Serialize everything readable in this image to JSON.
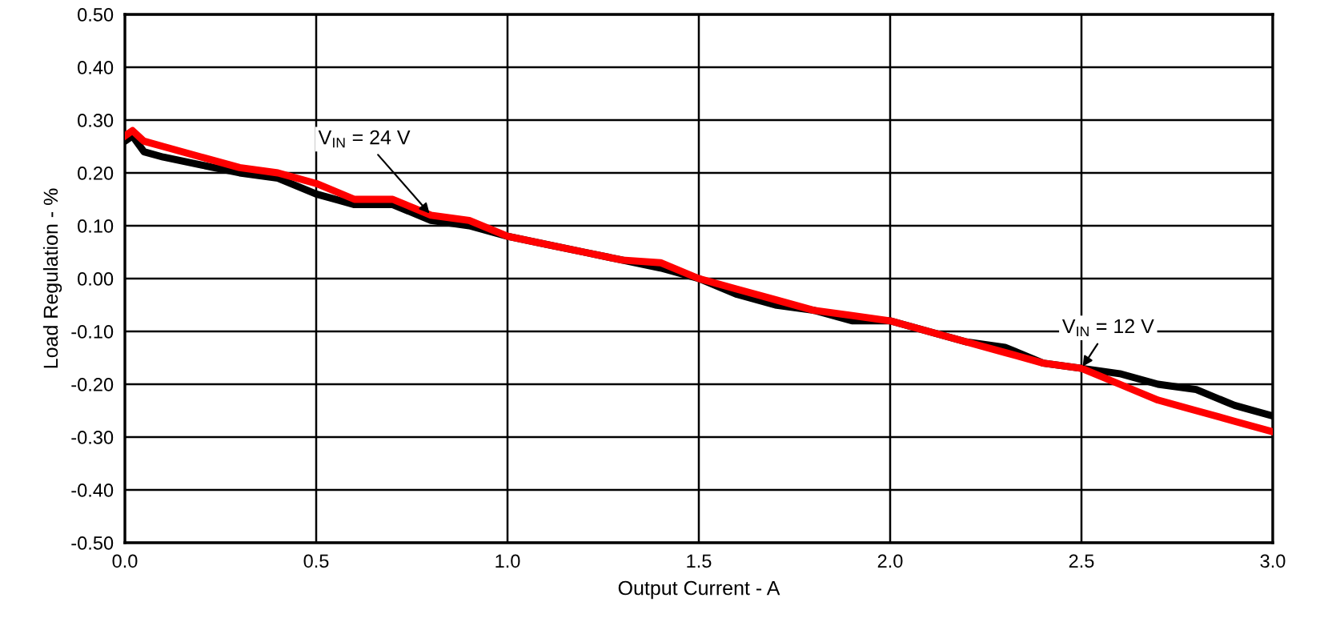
{
  "chart_data": {
    "type": "line",
    "xlabel": "Output Current - A",
    "ylabel": "Load Regulation - %",
    "xlim": [
      0,
      3
    ],
    "ylim": [
      -0.5,
      0.5
    ],
    "xticks": [
      {
        "value": 0,
        "label": "0.0"
      },
      {
        "value": 0.5,
        "label": "0.5"
      },
      {
        "value": 1,
        "label": "1.0"
      },
      {
        "value": 1.5,
        "label": "1.5"
      },
      {
        "value": 2,
        "label": "2.0"
      },
      {
        "value": 2.5,
        "label": "2.5"
      },
      {
        "value": 3,
        "label": "3.0"
      }
    ],
    "yticks": [
      {
        "value": -0.5,
        "label": "-0.50"
      },
      {
        "value": -0.4,
        "label": "-0.40"
      },
      {
        "value": -0.3,
        "label": "-0.30"
      },
      {
        "value": -0.2,
        "label": "-0.20"
      },
      {
        "value": -0.1,
        "label": "-0.10"
      },
      {
        "value": 0,
        "label": "0.00"
      },
      {
        "value": 0.1,
        "label": "0.10"
      },
      {
        "value": 0.2,
        "label": "0.20"
      },
      {
        "value": 0.3,
        "label": "0.30"
      },
      {
        "value": 0.4,
        "label": "0.40"
      },
      {
        "value": 0.5,
        "label": "0.50"
      }
    ],
    "grid": true,
    "marker": "none",
    "line_style": "solid",
    "x": [
      0,
      0.02,
      0.05,
      0.1,
      0.2,
      0.3,
      0.4,
      0.5,
      0.6,
      0.7,
      0.8,
      0.9,
      1.0,
      1.1,
      1.2,
      1.3,
      1.4,
      1.5,
      1.6,
      1.7,
      1.8,
      1.9,
      2.0,
      2.1,
      2.2,
      2.3,
      2.4,
      2.5,
      2.6,
      2.7,
      2.8,
      2.9,
      3.0
    ],
    "series": [
      {
        "name": "V$_{IN}$ = 12 V",
        "color": "#000000",
        "values": [
          0.26,
          0.27,
          0.24,
          0.23,
          0.215,
          0.2,
          0.19,
          0.16,
          0.14,
          0.14,
          0.11,
          0.1,
          0.08,
          0.065,
          0.05,
          0.035,
          0.02,
          0.0,
          -0.03,
          -0.05,
          -0.06,
          -0.08,
          -0.08,
          -0.1,
          -0.12,
          -0.13,
          -0.16,
          -0.17,
          -0.18,
          -0.2,
          -0.21,
          -0.24,
          -0.26
        ]
      },
      {
        "name": "V$_{IN}$ = 24 V",
        "color": "#ff0000",
        "values": [
          0.27,
          0.28,
          0.26,
          0.25,
          0.23,
          0.21,
          0.2,
          0.18,
          0.15,
          0.15,
          0.12,
          0.11,
          0.08,
          0.065,
          0.05,
          0.035,
          0.03,
          0.0,
          -0.02,
          -0.04,
          -0.06,
          -0.07,
          -0.08,
          -0.1,
          -0.12,
          -0.14,
          -0.16,
          -0.17,
          -0.2,
          -0.23,
          -0.25,
          -0.27,
          -0.29
        ]
      }
    ]
  }
}
